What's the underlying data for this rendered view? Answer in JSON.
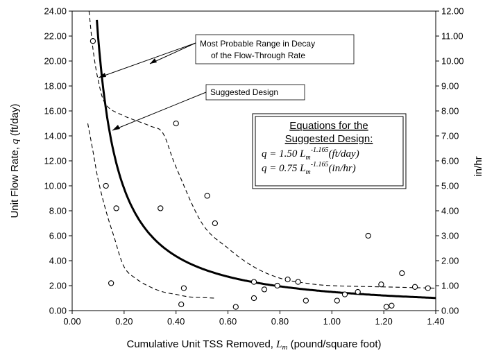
{
  "chart_data": {
    "type": "scatter",
    "xlabel": {
      "prefix": "Cumulative Unit TSS Removed, ",
      "var": "L",
      "sub": "m",
      "suffix": " (pound/square foot)"
    },
    "ylabel": {
      "prefix": "Unit Flow Rate, ",
      "var": "q",
      "suffix": " (ft/day)"
    },
    "y2label": "in/hr",
    "xlim": [
      0,
      1.4
    ],
    "ylim": [
      0,
      24
    ],
    "y2lim": [
      0,
      12
    ],
    "x_ticks": [
      "0.00",
      "0.20",
      "0.40",
      "0.60",
      "0.80",
      "1.00",
      "1.20",
      "1.40"
    ],
    "y_ticks": [
      "0.00",
      "2.00",
      "4.00",
      "6.00",
      "8.00",
      "10.00",
      "12.00",
      "14.00",
      "16.00",
      "18.00",
      "20.00",
      "22.00",
      "24.00"
    ],
    "y2_ticks": [
      "0.00",
      "1.00",
      "2.00",
      "3.00",
      "4.00",
      "5.00",
      "6.00",
      "7.00",
      "8.00",
      "9.00",
      "10.00",
      "11.00",
      "12.00"
    ],
    "grid": false,
    "points": [
      {
        "x": 0.08,
        "y": 21.6
      },
      {
        "x": 0.13,
        "y": 10.0
      },
      {
        "x": 0.17,
        "y": 8.2
      },
      {
        "x": 0.15,
        "y": 2.2
      },
      {
        "x": 0.34,
        "y": 8.2
      },
      {
        "x": 0.4,
        "y": 15.0
      },
      {
        "x": 0.42,
        "y": 0.5
      },
      {
        "x": 0.43,
        "y": 1.8
      },
      {
        "x": 0.52,
        "y": 9.2
      },
      {
        "x": 0.55,
        "y": 7.0
      },
      {
        "x": 0.63,
        "y": 0.3
      },
      {
        "x": 0.7,
        "y": 2.3
      },
      {
        "x": 0.7,
        "y": 1.0
      },
      {
        "x": 0.74,
        "y": 1.7
      },
      {
        "x": 0.79,
        "y": 2.0
      },
      {
        "x": 0.83,
        "y": 2.5
      },
      {
        "x": 0.87,
        "y": 2.3
      },
      {
        "x": 0.9,
        "y": 0.8
      },
      {
        "x": 1.02,
        "y": 0.8
      },
      {
        "x": 1.05,
        "y": 1.3
      },
      {
        "x": 1.1,
        "y": 1.5
      },
      {
        "x": 1.14,
        "y": 6.0
      },
      {
        "x": 1.19,
        "y": 2.1
      },
      {
        "x": 1.21,
        "y": 0.3
      },
      {
        "x": 1.23,
        "y": 0.4
      },
      {
        "x": 1.27,
        "y": 3.0
      },
      {
        "x": 1.32,
        "y": 1.9
      },
      {
        "x": 1.37,
        "y": 1.8
      }
    ],
    "design_curve": {
      "coef": 1.5,
      "exponent": -1.165,
      "x_start": 0.085,
      "x_end": 1.4
    },
    "range_upper": [
      [
        0.065,
        24
      ],
      [
        0.08,
        21
      ],
      [
        0.1,
        18.5
      ],
      [
        0.13,
        16.5
      ],
      [
        0.2,
        15.6
      ],
      [
        0.3,
        14.8
      ],
      [
        0.35,
        14.2
      ],
      [
        0.4,
        11.5
      ],
      [
        0.5,
        7.0
      ],
      [
        0.6,
        5.0
      ],
      [
        0.7,
        3.5
      ],
      [
        0.8,
        2.6
      ],
      [
        0.9,
        2.2
      ],
      [
        1.0,
        2.0
      ],
      [
        1.2,
        1.9
      ],
      [
        1.4,
        1.8
      ]
    ],
    "range_lower": [
      [
        0.06,
        15
      ],
      [
        0.08,
        12.8
      ],
      [
        0.1,
        10.5
      ],
      [
        0.13,
        8.0
      ],
      [
        0.16,
        6.0
      ],
      [
        0.2,
        3.5
      ],
      [
        0.25,
        2.5
      ],
      [
        0.3,
        1.9
      ],
      [
        0.35,
        1.5
      ],
      [
        0.4,
        1.3
      ],
      [
        0.45,
        1.1
      ],
      [
        0.5,
        1.05
      ],
      [
        0.55,
        1.0
      ]
    ],
    "annotations": [
      {
        "lines": [
          "Most Probable Range in Decay",
          "of the Flow-Through Rate"
        ]
      },
      {
        "lines": [
          "Suggested Design"
        ]
      }
    ],
    "equations": {
      "title_lines": [
        "Equations for the",
        "Suggested Design:"
      ],
      "eq1": {
        "lhs": "q = 1.50 L",
        "sub": "m",
        "exp": "-1.165",
        "unit": "(ft/day)"
      },
      "eq2": {
        "lhs": "q = 0.75 L",
        "sub": "m",
        "exp": "-1.165",
        "unit": "(in/hr)"
      }
    }
  }
}
